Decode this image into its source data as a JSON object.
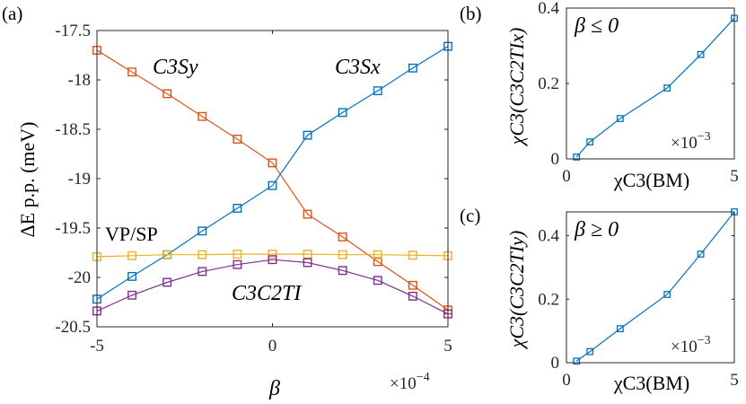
{
  "colors": {
    "c3sx": "#0072BD",
    "c3sy": "#D95319",
    "vpsp": "#EDB120",
    "c3c2ti": "#7E2F8E"
  },
  "chart_data": [
    {
      "panel": "(a)",
      "type": "line",
      "x": [
        -5,
        -4,
        -3,
        -2,
        -1,
        0,
        1,
        2,
        3,
        4,
        5
      ],
      "series": [
        {
          "name": "C3Sy",
          "color_key": "c3sy",
          "values": [
            -17.7,
            -17.92,
            -18.14,
            -18.37,
            -18.6,
            -18.84,
            -19.36,
            -19.59,
            -19.84,
            -20.08,
            -20.33
          ]
        },
        {
          "name": "C3Sx",
          "color_key": "c3sx",
          "values": [
            -20.22,
            -19.99,
            -19.77,
            -19.53,
            -19.3,
            -19.07,
            -18.56,
            -18.33,
            -18.11,
            -17.88,
            -17.66
          ]
        },
        {
          "name": "VP/SP",
          "color_key": "vpsp",
          "values": [
            -19.79,
            -19.78,
            -19.77,
            -19.77,
            -19.765,
            -19.765,
            -19.765,
            -19.77,
            -19.77,
            -19.775,
            -19.78
          ]
        },
        {
          "name": "C3C2TI",
          "color_key": "c3c2ti",
          "values": [
            -20.34,
            -20.18,
            -20.05,
            -19.94,
            -19.87,
            -19.82,
            -19.85,
            -19.93,
            -20.03,
            -20.19,
            -20.37
          ]
        }
      ],
      "xlim": [
        -5,
        5
      ],
      "ylim": [
        -20.5,
        -17.5
      ],
      "xticks": [
        -5,
        0,
        5
      ],
      "xtick_labels": [
        "-5",
        "0",
        "5"
      ],
      "yticks": [
        -17.5,
        -18,
        -18.5,
        -19,
        -19.5,
        -20,
        -20.5
      ],
      "ytick_labels": [
        "-17.5",
        "-18",
        "-18.5",
        "-19",
        "-19.5",
        "-20",
        "-20.5"
      ],
      "xlabel": "β",
      "ylabel": "ΔE p.p. (meV)",
      "x_exponent": "×10",
      "x_exponent_power": "−4",
      "annotations": [
        "C3Sy",
        "C3Sx",
        "VP/SP",
        "C3C2TI"
      ]
    },
    {
      "panel": "(b)",
      "type": "line",
      "x": [
        0.3,
        0.7,
        1.6,
        3.0,
        4.0,
        5.0
      ],
      "series": [
        {
          "name": "chi",
          "color_key": "c3sx",
          "values": [
            0.005,
            0.045,
            0.107,
            0.188,
            0.277,
            0.373
          ]
        }
      ],
      "xlim": [
        0,
        5
      ],
      "ylim": [
        0,
        0.4
      ],
      "xticks": [
        0,
        5
      ],
      "xtick_labels": [
        "0",
        "5"
      ],
      "yticks": [
        0,
        0.2,
        0.4
      ],
      "ytick_labels": [
        "0",
        "0.2",
        "0.4"
      ],
      "xlabel": "χC3(BM)",
      "ylabel": "χC3(C3C2TIx)",
      "condition": "β ≤ 0",
      "x_exponent": "×10",
      "x_exponent_power": "−3"
    },
    {
      "panel": "(c)",
      "type": "line",
      "x": [
        0.3,
        0.7,
        1.6,
        3.0,
        4.0,
        5.0
      ],
      "series": [
        {
          "name": "chi",
          "color_key": "c3sx",
          "values": [
            0.005,
            0.035,
            0.107,
            0.215,
            0.342,
            0.475
          ]
        }
      ],
      "xlim": [
        0,
        5
      ],
      "ylim": [
        0,
        0.475
      ],
      "xticks": [
        0,
        5
      ],
      "xtick_labels": [
        "0",
        "5"
      ],
      "yticks": [
        0,
        0.2,
        0.4
      ],
      "ytick_labels": [
        "0",
        "0.2",
        "0.4"
      ],
      "xlabel": "χC3(BM)",
      "ylabel": "χC3(C3C2TIy)",
      "condition": "β ≥ 0",
      "x_exponent": "×10",
      "x_exponent_power": "−3"
    }
  ]
}
